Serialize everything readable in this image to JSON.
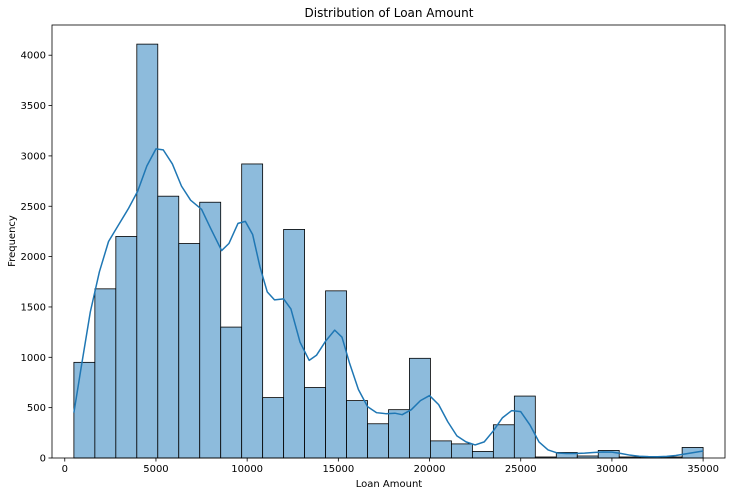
{
  "chart_data": {
    "type": "histogram",
    "title": "Distribution of Loan Amount",
    "xlabel": "Loan Amount",
    "ylabel": "Frequency",
    "xlim": [
      -700,
      36200
    ],
    "ylim": [
      0,
      4300
    ],
    "xticks": [
      0,
      5000,
      10000,
      15000,
      20000,
      25000,
      30000,
      35000
    ],
    "yticks": [
      0,
      500,
      1000,
      1500,
      2000,
      2500,
      3000,
      3500,
      4000
    ],
    "bin_edges": [
      500,
      1650,
      2800,
      3950,
      5100,
      6250,
      7400,
      8550,
      9700,
      10850,
      12000,
      13150,
      14300,
      15450,
      16600,
      17750,
      18900,
      20050,
      21200,
      22350,
      23500,
      24650,
      25800,
      26950,
      28100,
      29250,
      30400,
      31550,
      32700,
      33850,
      35000
    ],
    "counts": [
      950,
      1680,
      2200,
      4110,
      2600,
      2130,
      2540,
      1300,
      2920,
      600,
      2270,
      700,
      1660,
      570,
      340,
      480,
      990,
      170,
      140,
      65,
      330,
      615,
      10,
      55,
      20,
      75,
      10,
      10,
      10,
      105
    ],
    "bar_color": "#8dbbdc",
    "edge_color": "#000000",
    "kde": {
      "color": "#1f77b4",
      "points": [
        [
          500,
          450
        ],
        [
          900,
          900
        ],
        [
          1400,
          1450
        ],
        [
          1900,
          1850
        ],
        [
          2400,
          2150
        ],
        [
          2900,
          2300
        ],
        [
          3500,
          2480
        ],
        [
          4000,
          2650
        ],
        [
          4500,
          2900
        ],
        [
          5000,
          3070
        ],
        [
          5400,
          3060
        ],
        [
          5900,
          2920
        ],
        [
          6400,
          2700
        ],
        [
          6900,
          2560
        ],
        [
          7500,
          2470
        ],
        [
          8000,
          2280
        ],
        [
          8600,
          2060
        ],
        [
          9000,
          2130
        ],
        [
          9500,
          2330
        ],
        [
          9900,
          2350
        ],
        [
          10300,
          2220
        ],
        [
          10700,
          1900
        ],
        [
          11100,
          1650
        ],
        [
          11500,
          1570
        ],
        [
          12000,
          1580
        ],
        [
          12400,
          1480
        ],
        [
          12900,
          1150
        ],
        [
          13400,
          970
        ],
        [
          13800,
          1020
        ],
        [
          14300,
          1160
        ],
        [
          14800,
          1270
        ],
        [
          15200,
          1200
        ],
        [
          15600,
          950
        ],
        [
          16100,
          680
        ],
        [
          16600,
          510
        ],
        [
          17100,
          450
        ],
        [
          17600,
          440
        ],
        [
          18100,
          445
        ],
        [
          18500,
          430
        ],
        [
          19000,
          480
        ],
        [
          19500,
          570
        ],
        [
          20000,
          620
        ],
        [
          20500,
          530
        ],
        [
          21000,
          360
        ],
        [
          21500,
          220
        ],
        [
          22000,
          160
        ],
        [
          22500,
          130
        ],
        [
          23000,
          160
        ],
        [
          23500,
          270
        ],
        [
          24000,
          400
        ],
        [
          24500,
          470
        ],
        [
          25000,
          460
        ],
        [
          25500,
          330
        ],
        [
          26000,
          160
        ],
        [
          26500,
          80
        ],
        [
          27000,
          50
        ],
        [
          27500,
          45
        ],
        [
          28000,
          45
        ],
        [
          28500,
          48
        ],
        [
          29000,
          55
        ],
        [
          29500,
          60
        ],
        [
          30000,
          58
        ],
        [
          30500,
          45
        ],
        [
          31000,
          28
        ],
        [
          31500,
          18
        ],
        [
          32000,
          14
        ],
        [
          32500,
          13
        ],
        [
          33000,
          16
        ],
        [
          33500,
          25
        ],
        [
          34000,
          40
        ],
        [
          34500,
          55
        ],
        [
          35000,
          70
        ]
      ]
    }
  }
}
